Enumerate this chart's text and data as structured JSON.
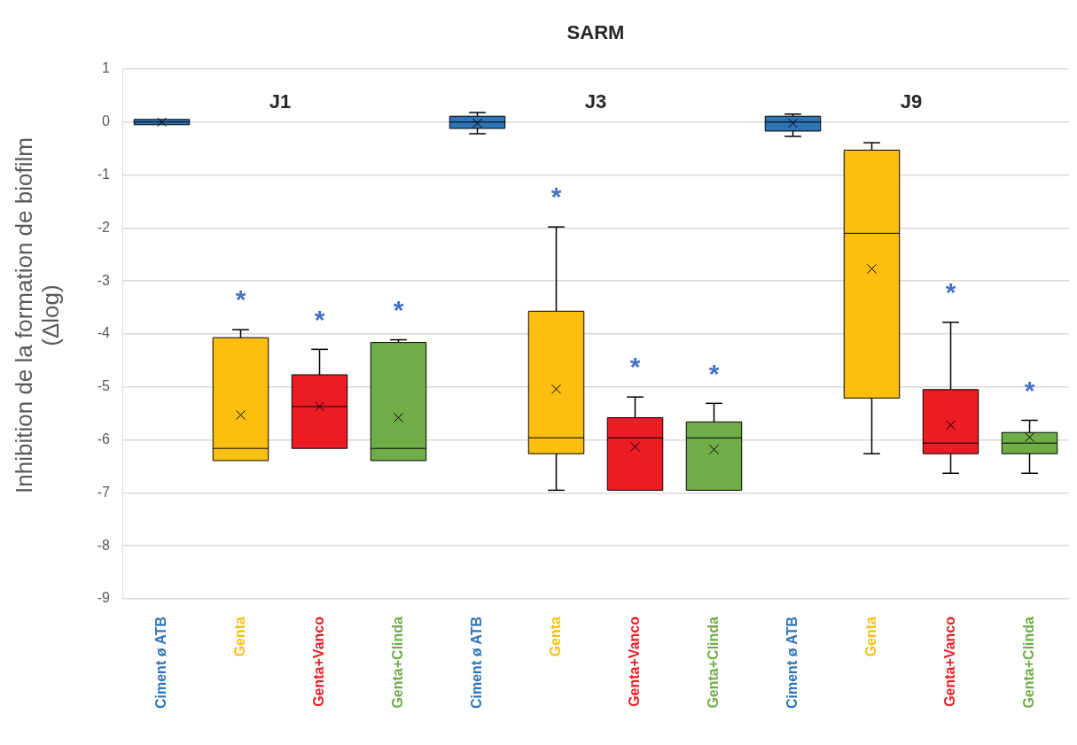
{
  "chart_data": [
    {
      "type": "box",
      "subtitle": "J1",
      "ylabel": "Inhibition de la formation de biofilm (Δlog)",
      "categories": [
        "Ciment ø ATB",
        "Genta",
        "Genta+Vanco",
        "Genta+Clinda"
      ],
      "colors": [
        "#2e75b6",
        "#fcbf10",
        "#ed1c24",
        "#70ad47"
      ],
      "boxes": [
        {
          "low": -0.05,
          "q1": -0.05,
          "median": 0,
          "q3": 0.05,
          "high": 0.05,
          "mean": 0
        },
        {
          "low": -6.39,
          "q1": -6.39,
          "median": -6.16,
          "q3": -4.07,
          "high": -3.92,
          "mean": -5.53
        },
        {
          "low": -6.16,
          "q1": -6.16,
          "median": -5.37,
          "q3": -4.77,
          "high": -4.29,
          "mean": -5.37
        },
        {
          "low": -6.39,
          "q1": -6.39,
          "median": -6.16,
          "q3": -4.16,
          "high": -4.11,
          "mean": -5.58
        }
      ],
      "annotations": [
        {
          "text": "*",
          "x": "Genta",
          "y": -3.92
        },
        {
          "text": "*",
          "x": "Genta+Vanco",
          "y": -4.29
        },
        {
          "text": "*",
          "x": "Genta+Clinda",
          "y": -4.11
        }
      ],
      "ylim": [
        -9,
        1
      ],
      "yticks": [
        -9,
        -8,
        -7,
        -6,
        -5,
        -4,
        -3,
        -2,
        -1,
        0,
        1
      ],
      "grid": "y",
      "legend": false
    },
    {
      "type": "box",
      "title": "SARM",
      "subtitle": "J3",
      "categories": [
        "Ciment ø ATB",
        "Genta",
        "Genta+Vanco",
        "Genta+Clinda"
      ],
      "colors": [
        "#2e75b6",
        "#fcbf10",
        "#ed1c24",
        "#70ad47"
      ],
      "boxes": [
        {
          "low": -0.22,
          "q1": -0.12,
          "median": 0,
          "q3": 0.11,
          "high": 0.18,
          "mean": -0.02
        },
        {
          "low": -6.95,
          "q1": -6.26,
          "median": -5.96,
          "q3": -3.57,
          "high": -1.98,
          "mean": -5.04
        },
        {
          "low": -6.95,
          "q1": -6.95,
          "median": -5.96,
          "q3": -5.58,
          "high": -5.19,
          "mean": -6.13
        },
        {
          "low": -6.95,
          "q1": -6.95,
          "median": -5.96,
          "q3": -5.66,
          "high": -5.31,
          "mean": -6.18
        }
      ],
      "annotations": [
        {
          "text": "*",
          "x": "Genta",
          "y": -1.98
        },
        {
          "text": "*",
          "x": "Genta+Vanco",
          "y": -5.19
        },
        {
          "text": "*",
          "x": "Genta+Clinda",
          "y": -5.31
        }
      ],
      "ylim": [
        -9,
        1
      ],
      "yticks": [
        -9,
        -8,
        -7,
        -6,
        -5,
        -4,
        -3,
        -2,
        -1,
        0,
        1
      ],
      "grid": "y",
      "legend": false,
      "tick_labels": "x"
    },
    {
      "type": "box",
      "subtitle": "J9",
      "categories": [
        "Ciment ø ATB",
        "Genta",
        "Genta+Vanco",
        "Genta+Clinda"
      ],
      "colors": [
        "#2e75b6",
        "#fcbf10",
        "#ed1c24",
        "#70ad47"
      ],
      "boxes": [
        {
          "low": -0.27,
          "q1": -0.17,
          "median": 0,
          "q3": 0.11,
          "high": 0.15,
          "mean": -0.02
        },
        {
          "low": -6.26,
          "q1": -5.21,
          "median": -2.1,
          "q3": -0.53,
          "high": -0.39,
          "mean": -2.77
        },
        {
          "low": -6.63,
          "q1": -6.26,
          "median": -6.06,
          "q3": -5.05,
          "high": -3.78,
          "mean": -5.72
        },
        {
          "low": -6.63,
          "q1": -6.26,
          "median": -6.06,
          "q3": -5.86,
          "high": -5.63,
          "mean": -5.95
        }
      ],
      "annotations": [
        {
          "text": "*",
          "x": "Genta+Vanco",
          "y": -3.78
        },
        {
          "text": "*",
          "x": "Genta+Clinda",
          "y": -5.63
        }
      ],
      "ylim": [
        -9,
        1
      ],
      "yticks": [
        -9,
        -8,
        -7,
        -6,
        -5,
        -4,
        -3,
        -2,
        -1,
        0,
        1
      ],
      "grid": "y",
      "legend": false,
      "tick_labels": "x"
    }
  ]
}
